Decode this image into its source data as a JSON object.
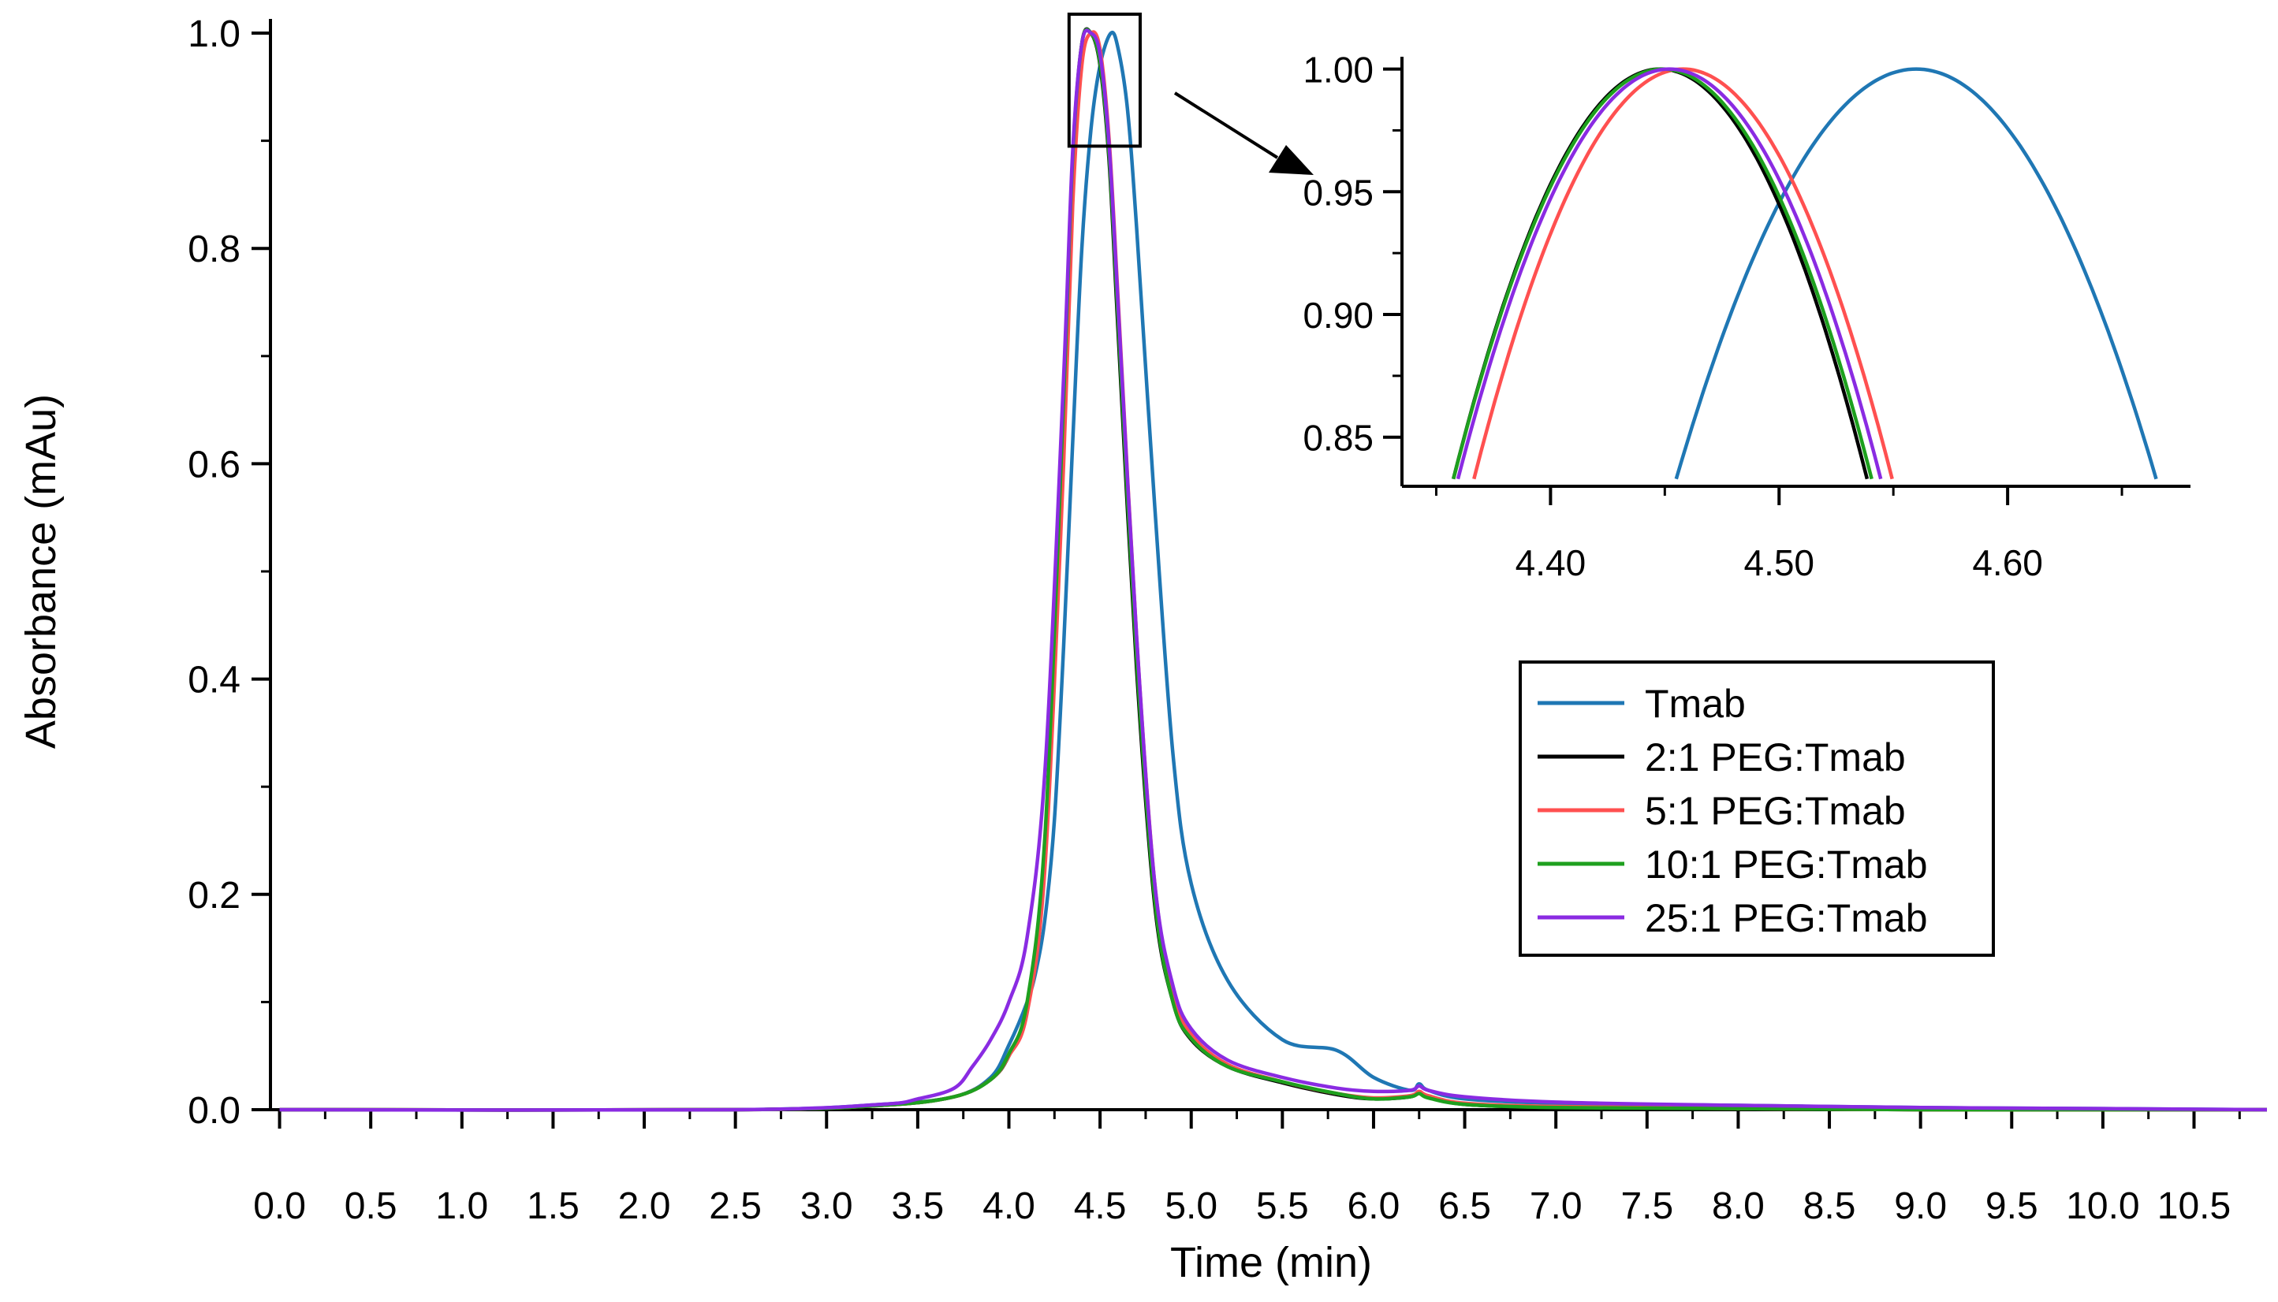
{
  "chart_data": {
    "type": "line",
    "main": {
      "xlabel": "Time (min)",
      "ylabel": "Absorbance (mAu)",
      "xlim": [
        -0.05,
        10.9
      ],
      "ylim": [
        0,
        1.0
      ],
      "xticks": [
        0.0,
        0.5,
        1.0,
        1.5,
        2.0,
        2.5,
        3.0,
        3.5,
        4.0,
        4.5,
        5.0,
        5.5,
        6.0,
        6.5,
        7.0,
        7.5,
        8.0,
        8.5,
        9.0,
        9.5,
        10.0,
        10.5
      ],
      "xtick_labels": [
        "0.0",
        "0.5",
        "1.0",
        "1.5",
        "2.0",
        "2.5",
        "3.0",
        "3.5",
        "4.0",
        "4.5",
        "5.0",
        "5.5",
        "6.0",
        "6.5",
        "7.0",
        "7.5",
        "8.0",
        "8.5",
        "9.0",
        "9.5",
        "10.0",
        "10.5"
      ],
      "yticks": [
        0.0,
        0.2,
        0.4,
        0.6,
        0.8,
        1.0
      ],
      "ytick_labels": [
        "0.0",
        "0.2",
        "0.4",
        "0.6",
        "0.8",
        "1.0"
      ],
      "zoom_box": {
        "x": [
          4.33,
          4.72
        ],
        "y": [
          0.895,
          1.0
        ]
      }
    },
    "inset": {
      "xlim": [
        4.335,
        4.68
      ],
      "ylim": [
        0.83,
        1.005
      ],
      "xticks": [
        4.4,
        4.5,
        4.6
      ],
      "xtick_labels": [
        "4.40",
        "4.50",
        "4.60"
      ],
      "yticks": [
        0.85,
        0.9,
        0.95,
        1.0
      ],
      "ytick_labels": [
        "0.85",
        "0.90",
        "0.95",
        "1.00"
      ]
    },
    "series": [
      {
        "name": "Tmab",
        "color": "#1f77b4",
        "x": [
          0,
          2.5,
          3.3,
          3.7,
          3.9,
          4.0,
          4.1,
          4.15,
          4.2,
          4.25,
          4.3,
          4.35,
          4.4,
          4.45,
          4.5,
          4.56,
          4.6,
          4.65,
          4.7,
          4.8,
          4.9,
          5.0,
          5.2,
          5.5,
          5.8,
          6.0,
          6.2,
          6.25,
          6.3,
          6.5,
          7.0,
          8.0,
          9.0,
          10.0,
          10.9
        ],
        "y": [
          0,
          0,
          0.005,
          0.012,
          0.03,
          0.06,
          0.1,
          0.13,
          0.18,
          0.27,
          0.43,
          0.62,
          0.8,
          0.91,
          0.97,
          1.0,
          0.985,
          0.93,
          0.82,
          0.56,
          0.33,
          0.21,
          0.12,
          0.065,
          0.055,
          0.03,
          0.018,
          0.024,
          0.018,
          0.01,
          0.006,
          0.004,
          0.002,
          0.001,
          0
        ]
      },
      {
        "name": "2:1 PEG:Tmab",
        "color": "#000000",
        "x": [
          0,
          2.5,
          3.3,
          3.7,
          3.9,
          4.0,
          4.1,
          4.2,
          4.3,
          4.35,
          4.4,
          4.45,
          4.5,
          4.55,
          4.6,
          4.7,
          4.8,
          4.9,
          5.0,
          5.2,
          5.5,
          5.8,
          6.0,
          6.2,
          6.25,
          6.3,
          6.5,
          7.0,
          8.0,
          9.0,
          10.0,
          10.9
        ],
        "y": [
          0,
          0,
          0.004,
          0.012,
          0.028,
          0.05,
          0.095,
          0.25,
          0.65,
          0.88,
          0.99,
          1.0,
          0.97,
          0.88,
          0.72,
          0.41,
          0.19,
          0.1,
          0.065,
          0.04,
          0.025,
          0.014,
          0.01,
          0.012,
          0.016,
          0.012,
          0.005,
          0.002,
          0.001,
          0,
          0,
          0
        ]
      },
      {
        "name": "5:1 PEG:Tmab",
        "color": "#ff5050",
        "x": [
          0,
          2.5,
          3.3,
          3.7,
          3.9,
          4.0,
          4.1,
          4.2,
          4.3,
          4.35,
          4.4,
          4.45,
          4.5,
          4.55,
          4.6,
          4.7,
          4.8,
          4.9,
          5.0,
          5.2,
          5.5,
          5.8,
          6.0,
          6.2,
          6.25,
          6.3,
          6.5,
          7.0,
          8.0,
          9.0,
          10.0,
          10.9
        ],
        "y": [
          0,
          0,
          0.004,
          0.012,
          0.028,
          0.05,
          0.09,
          0.23,
          0.6,
          0.84,
          0.97,
          1.0,
          0.985,
          0.9,
          0.75,
          0.44,
          0.21,
          0.11,
          0.07,
          0.042,
          0.026,
          0.015,
          0.011,
          0.013,
          0.017,
          0.013,
          0.006,
          0.003,
          0.001,
          0,
          0,
          0
        ]
      },
      {
        "name": "10:1 PEG:Tmab",
        "color": "#1ea01e",
        "x": [
          0,
          2.5,
          3.3,
          3.7,
          3.9,
          4.0,
          4.1,
          4.2,
          4.3,
          4.35,
          4.4,
          4.45,
          4.5,
          4.55,
          4.6,
          4.7,
          4.8,
          4.9,
          5.0,
          5.2,
          5.5,
          5.8,
          6.0,
          6.2,
          6.25,
          6.3,
          6.5,
          7.0,
          8.0,
          9.0,
          10.0,
          10.9
        ],
        "y": [
          0,
          0,
          0.004,
          0.012,
          0.028,
          0.052,
          0.1,
          0.26,
          0.66,
          0.885,
          0.99,
          1.0,
          0.972,
          0.885,
          0.73,
          0.42,
          0.195,
          0.1,
          0.066,
          0.04,
          0.026,
          0.015,
          0.01,
          0.012,
          0.015,
          0.011,
          0.005,
          0.002,
          0.001,
          0,
          0,
          0
        ]
      },
      {
        "name": "25:1 PEG:Tmab",
        "color": "#8a2be2",
        "x": [
          0,
          2.5,
          3.3,
          3.5,
          3.7,
          3.8,
          3.9,
          4.0,
          4.1,
          4.2,
          4.3,
          4.35,
          4.4,
          4.45,
          4.5,
          4.55,
          4.6,
          4.7,
          4.8,
          4.9,
          5.0,
          5.2,
          5.5,
          5.8,
          6.0,
          6.2,
          6.25,
          6.3,
          6.5,
          7.0,
          8.0,
          9.0,
          10.0,
          10.9
        ],
        "y": [
          0,
          0,
          0.005,
          0.01,
          0.02,
          0.04,
          0.065,
          0.1,
          0.16,
          0.32,
          0.68,
          0.89,
          0.99,
          1.0,
          0.98,
          0.895,
          0.745,
          0.44,
          0.21,
          0.115,
          0.075,
          0.046,
          0.03,
          0.02,
          0.017,
          0.018,
          0.022,
          0.018,
          0.012,
          0.007,
          0.004,
          0.002,
          0.001,
          0
        ]
      }
    ],
    "inset_series": [
      {
        "name": "Tmab",
        "color": "#1f77b4",
        "peak": 4.56,
        "half_width": 0.105
      },
      {
        "name": "2:1 PEG:Tmab",
        "color": "#000000",
        "peak": 4.448,
        "half_width": 0.0905
      },
      {
        "name": "5:1 PEG:Tmab",
        "color": "#ff5050",
        "peak": 4.458,
        "half_width": 0.0915
      },
      {
        "name": "10:1 PEG:Tmab",
        "color": "#1ea01e",
        "peak": 4.449,
        "half_width": 0.0915
      },
      {
        "name": "25:1 PEG:Tmab",
        "color": "#8a2be2",
        "peak": 4.452,
        "half_width": 0.0925
      }
    ],
    "legend": {
      "placement": "right",
      "entries": [
        "Tmab",
        "2:1 PEG:Tmab",
        "5:1 PEG:Tmab",
        "10:1 PEG:Tmab",
        "25:1 PEG:Tmab"
      ]
    }
  }
}
